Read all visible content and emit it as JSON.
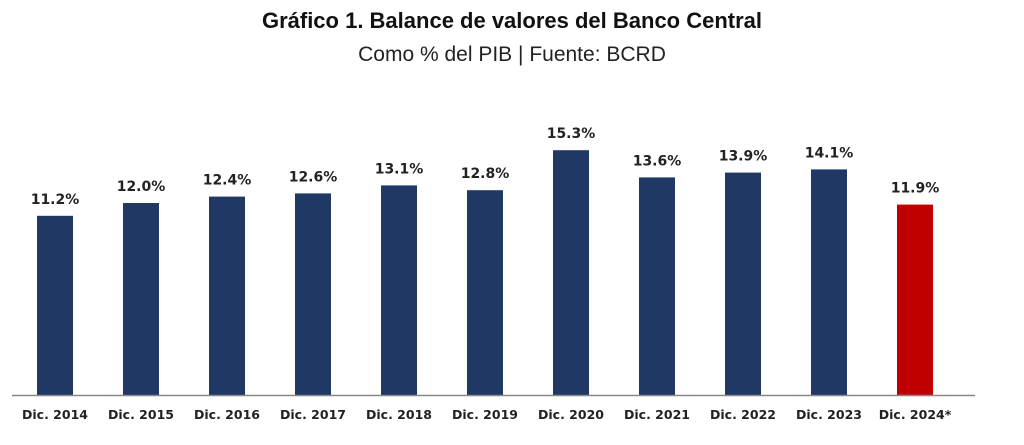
{
  "chart_data": {
    "type": "bar",
    "title": "Gráfico 1. Balance de valores del Banco Central",
    "subtitle": "Como % del PIB | Fuente: BCRD",
    "xlabel": "",
    "ylabel": "",
    "categories": [
      "Dic. 2014",
      "Dic. 2015",
      "Dic. 2016",
      "Dic. 2017",
      "Dic. 2018",
      "Dic. 2019",
      "Dic. 2020",
      "Dic. 2021",
      "Dic. 2022",
      "Dic. 2023",
      "Dic. 2024*"
    ],
    "values": [
      11.2,
      12.0,
      12.4,
      12.6,
      13.1,
      12.8,
      15.3,
      13.6,
      13.9,
      14.1,
      11.9
    ],
    "data_labels": [
      "11.2%",
      "12.0%",
      "12.4%",
      "12.6%",
      "13.1%",
      "12.8%",
      "15.3%",
      "13.6%",
      "13.9%",
      "14.1%",
      "11.9%"
    ],
    "ylim": [
      0,
      17
    ],
    "grid": false,
    "legend": "none",
    "colors": {
      "default": "#1f3864",
      "highlight": "#c00000",
      "axis": "#888888"
    },
    "highlight_index": 10
  }
}
